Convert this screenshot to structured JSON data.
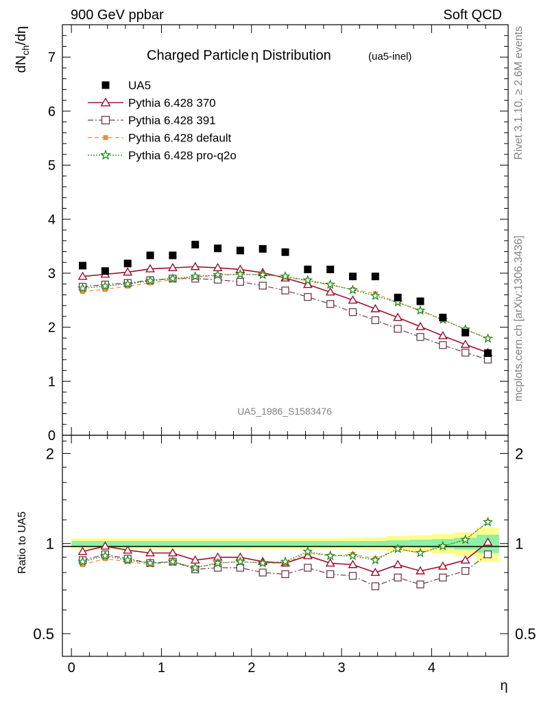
{
  "header": {
    "left": "900 GeV ppbar",
    "right": "Soft QCD"
  },
  "side_labels": {
    "version": "Rivet 3.1.10, ≥ 2.6M events",
    "site": "mcplots.cern.ch [arXiv:1306.3436]"
  },
  "watermark": "UA5_1986_S1583476",
  "chart_data": [
    {
      "type": "scatter",
      "title": "Charged Particle η Distribution",
      "title_main": "Charged Particle",
      "title_eta": "η",
      "title_rest": " Distribution",
      "subtitle": "(ua5-inel)",
      "ylabel": "dN_ch/dη",
      "ylim": [
        0,
        7.6
      ],
      "xlim": [
        -0.1,
        4.85
      ],
      "yticks": [
        0,
        1,
        2,
        3,
        4,
        5,
        6,
        7
      ],
      "x": [
        0.125,
        0.375,
        0.625,
        0.875,
        1.125,
        1.375,
        1.625,
        1.875,
        2.125,
        2.375,
        2.625,
        2.875,
        3.125,
        3.375,
        3.625,
        3.875,
        4.125,
        4.375,
        4.625
      ],
      "legend_position": "top-left",
      "series": [
        {
          "name": "UA5",
          "color": "#000000",
          "marker": "filled-square",
          "line": "none",
          "values": [
            3.14,
            3.04,
            3.18,
            3.33,
            3.33,
            3.53,
            3.46,
            3.42,
            3.45,
            3.39,
            3.07,
            3.07,
            2.94,
            2.94,
            2.55,
            2.48,
            2.18,
            1.9,
            1.52
          ]
        },
        {
          "name": "Pythia 6.428 370",
          "color": "#9a0e2a",
          "marker": "open-triangle",
          "line": "solid",
          "values": [
            2.94,
            2.98,
            3.02,
            3.08,
            3.1,
            3.12,
            3.1,
            3.07,
            3.01,
            2.91,
            2.79,
            2.65,
            2.5,
            2.34,
            2.18,
            2.01,
            1.84,
            1.68,
            1.53
          ]
        },
        {
          "name": "Pythia 6.428 391",
          "color": "#6b3a4d",
          "marker": "open-square",
          "line": "dashdot",
          "values": [
            2.75,
            2.79,
            2.82,
            2.87,
            2.9,
            2.9,
            2.88,
            2.84,
            2.77,
            2.68,
            2.56,
            2.43,
            2.28,
            2.13,
            1.97,
            1.82,
            1.67,
            1.53,
            1.4
          ]
        },
        {
          "name": "Pythia 6.428 default",
          "color": "#f28b30",
          "marker": "filled-square",
          "line": "dashed",
          "values": [
            2.66,
            2.7,
            2.76,
            2.82,
            2.88,
            2.93,
            2.96,
            2.98,
            2.97,
            2.93,
            2.86,
            2.78,
            2.7,
            2.62,
            2.46,
            2.3,
            2.14,
            1.96,
            1.79
          ]
        },
        {
          "name": "Pythia 6.428 pro-q2o",
          "color": "#1f8a1f",
          "marker": "open-star",
          "line": "dotted",
          "values": [
            2.72,
            2.76,
            2.8,
            2.86,
            2.9,
            2.94,
            2.97,
            2.98,
            2.97,
            2.94,
            2.87,
            2.79,
            2.69,
            2.58,
            2.46,
            2.31,
            2.14,
            1.96,
            1.79
          ]
        }
      ]
    },
    {
      "type": "scatter",
      "ylabel": "Ratio to UA5",
      "xlabel": "η",
      "ylim": [
        0.42,
        2.3
      ],
      "log_y": true,
      "yticks": [
        0.5,
        1,
        2
      ],
      "ytick_labels": [
        "0.5",
        "1",
        "2"
      ],
      "xticks": [
        0,
        1,
        2,
        3,
        4
      ],
      "xtick_labels": [
        "0",
        "1",
        "2",
        "3",
        "4"
      ],
      "band_inner_halfwidth": [
        0.02,
        0.02,
        0.02,
        0.02,
        0.02,
        0.02,
        0.02,
        0.02,
        0.02,
        0.02,
        0.02,
        0.02,
        0.02,
        0.02,
        0.025,
        0.03,
        0.035,
        0.045,
        0.07
      ],
      "band_outer_halfwidth": [
        0.04,
        0.04,
        0.04,
        0.04,
        0.04,
        0.04,
        0.04,
        0.04,
        0.04,
        0.04,
        0.04,
        0.04,
        0.045,
        0.05,
        0.06,
        0.065,
        0.075,
        0.09,
        0.13
      ],
      "series": [
        {
          "name": "Pythia 6.428 370",
          "values": [
            0.94,
            0.98,
            0.95,
            0.93,
            0.93,
            0.88,
            0.9,
            0.9,
            0.87,
            0.86,
            0.91,
            0.86,
            0.85,
            0.8,
            0.85,
            0.81,
            0.84,
            0.88,
            1.01
          ]
        },
        {
          "name": "Pythia 6.428 391",
          "values": [
            0.88,
            0.92,
            0.89,
            0.86,
            0.87,
            0.82,
            0.83,
            0.83,
            0.8,
            0.79,
            0.83,
            0.79,
            0.78,
            0.72,
            0.77,
            0.73,
            0.77,
            0.81,
            0.92
          ]
        },
        {
          "name": "Pythia 6.428 default",
          "values": [
            0.85,
            0.89,
            0.87,
            0.85,
            0.87,
            0.83,
            0.86,
            0.87,
            0.86,
            0.86,
            0.93,
            0.91,
            0.92,
            0.89,
            0.96,
            0.93,
            0.98,
            1.03,
            1.18
          ]
        },
        {
          "name": "Pythia 6.428 pro-q2o",
          "values": [
            0.87,
            0.91,
            0.88,
            0.86,
            0.87,
            0.83,
            0.86,
            0.87,
            0.86,
            0.87,
            0.94,
            0.91,
            0.91,
            0.88,
            0.96,
            0.93,
            0.98,
            1.03,
            1.18
          ]
        }
      ]
    }
  ]
}
